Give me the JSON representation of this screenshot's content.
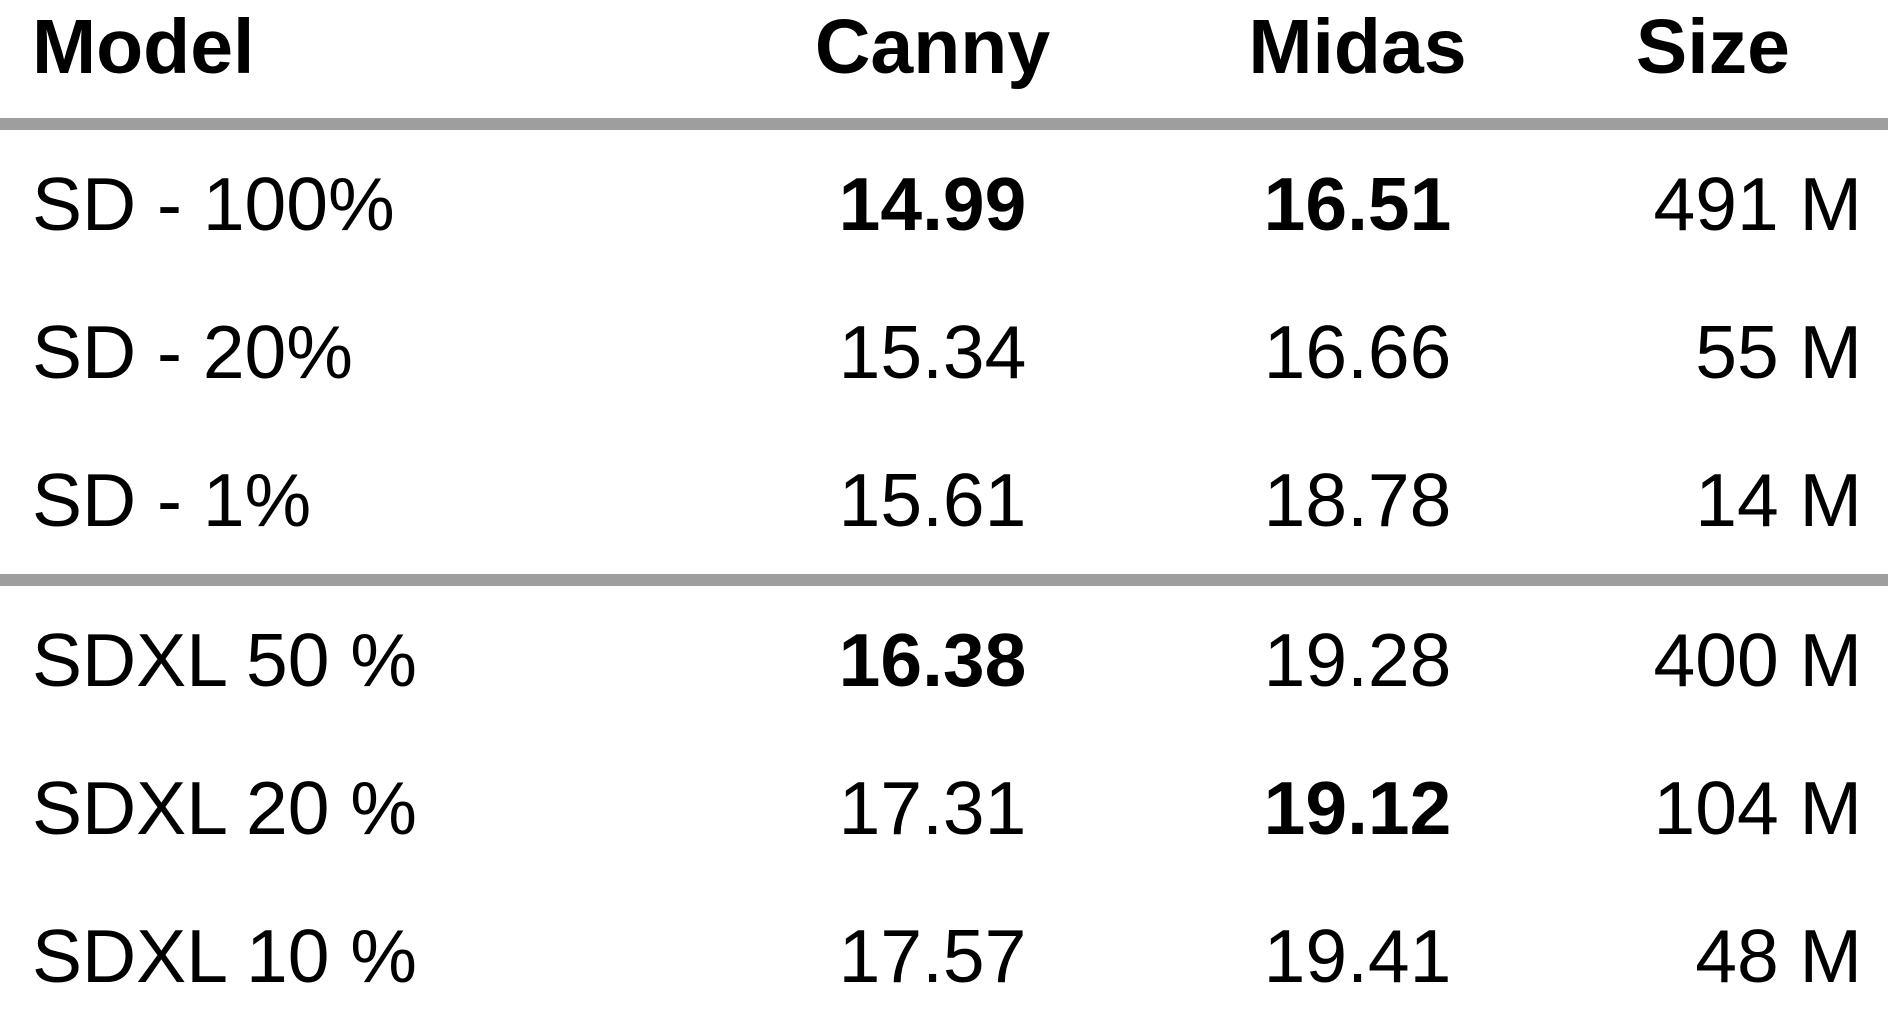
{
  "table": {
    "headers": [
      "Model",
      "Canny",
      "Midas",
      "Size"
    ],
    "groups": [
      {
        "rows": [
          {
            "model": "SD - 100%",
            "canny": "14.99",
            "midas": "16.51",
            "size": "491 M",
            "canny_bold": true,
            "midas_bold": true
          },
          {
            "model": "SD - 20%",
            "canny": "15.34",
            "midas": "16.66",
            "size": "55 M",
            "canny_bold": false,
            "midas_bold": false
          },
          {
            "model": "SD - 1%",
            "canny": "15.61",
            "midas": "18.78",
            "size": "14 M",
            "canny_bold": false,
            "midas_bold": false
          }
        ]
      },
      {
        "rows": [
          {
            "model": "SDXL 50 %",
            "canny": "16.38",
            "midas": "19.28",
            "size": "400 M",
            "canny_bold": true,
            "midas_bold": false
          },
          {
            "model": "SDXL 20 %",
            "canny": "17.31",
            "midas": "19.12",
            "size": "104 M",
            "canny_bold": false,
            "midas_bold": true
          },
          {
            "model": "SDXL 10 %",
            "canny": "17.57",
            "midas": "19.41",
            "size": "48 M",
            "canny_bold": false,
            "midas_bold": false
          }
        ]
      }
    ]
  }
}
